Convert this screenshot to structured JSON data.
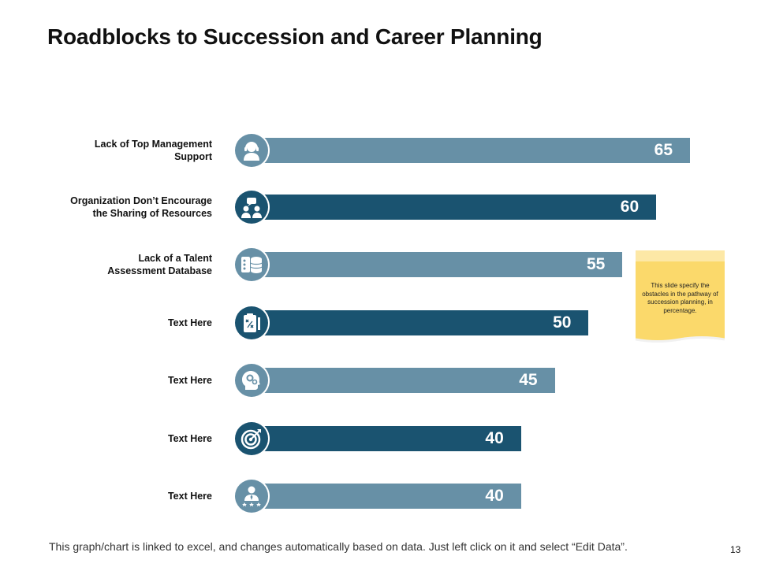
{
  "title": "Roadblocks to Succession and Career Planning",
  "chart_data": {
    "type": "bar",
    "orientation": "horizontal",
    "categories": [
      "Lack of Top Management Support",
      "Organization Don’t Encourage the Sharing of Resources",
      "Lack of a Talent Assessment Database",
      "Text Here",
      "Text Here",
      "Text Here",
      "Text Here"
    ],
    "values": [
      65,
      60,
      55,
      50,
      45,
      40,
      40
    ],
    "xlim": [
      0,
      65
    ]
  },
  "rows": [
    {
      "label_line1": "Lack of Top Management",
      "label_line2": "Support",
      "value": "65",
      "icon": "user-headset-icon"
    },
    {
      "label_line1": "Organization Don’t Encourage",
      "label_line2": "the Sharing of Resources",
      "value": "60",
      "icon": "team-discussion-icon"
    },
    {
      "label_line1": "Lack of a Talent",
      "label_line2": "Assessment Database",
      "value": "55",
      "icon": "database-icon"
    },
    {
      "label_line1": "Text Here",
      "label_line2": "",
      "value": "50",
      "icon": "clipboard-strategy-icon"
    },
    {
      "label_line1": "Text Here",
      "label_line2": "",
      "value": "45",
      "icon": "head-gears-icon"
    },
    {
      "label_line1": "Text Here",
      "label_line2": "",
      "value": "40",
      "icon": "target-icon"
    },
    {
      "label_line1": "Text Here",
      "label_line2": "",
      "value": "40",
      "icon": "employee-rating-icon"
    }
  ],
  "note": {
    "text": "This slide specify the obstacles in the pathway of succession planning, in percentage."
  },
  "colors": {
    "light": "#6790a6",
    "dark": "#1a5370",
    "note_fill": "#fbd96b",
    "note_top": "#fde8a6"
  },
  "footer": "This graph/chart is linked to excel, and changes automatically based on data. Just left click on it and select “Edit Data”.",
  "page_number": "13"
}
